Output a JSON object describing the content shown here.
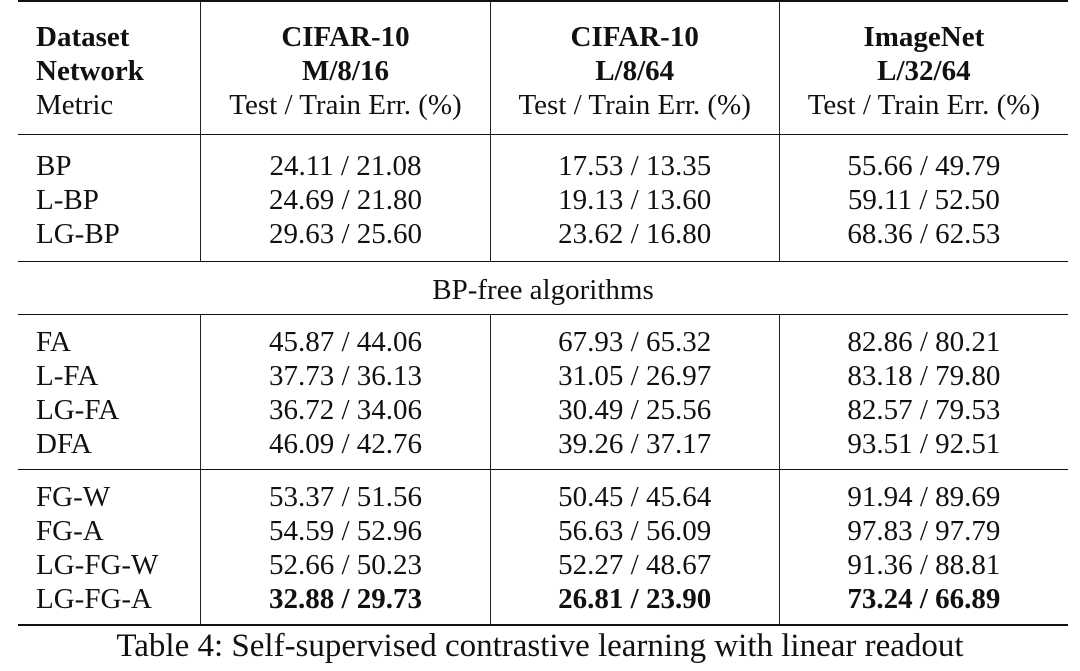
{
  "header": {
    "row1": [
      "Dataset",
      "CIFAR-10",
      "CIFAR-10",
      "ImageNet"
    ],
    "row2": [
      "Network",
      "M/8/16",
      "L/8/64",
      "L/32/64"
    ],
    "row3": [
      "Metric",
      "Test / Train Err. (%)",
      "Test / Train Err. (%)",
      "Test / Train Err. (%)"
    ]
  },
  "group_bp": [
    [
      "BP",
      "24.11 / 21.08",
      "17.53 / 13.35",
      "55.66 / 49.79"
    ],
    [
      "L-BP",
      "24.69 / 21.80",
      "19.13 / 13.60",
      "59.11 / 52.50"
    ],
    [
      "LG-BP",
      "29.63 / 25.60",
      "23.62 / 16.80",
      "68.36 / 62.53"
    ]
  ],
  "section_label": "BP-free algorithms",
  "group_fa": [
    [
      "FA",
      "45.87 / 44.06",
      "67.93 / 65.32",
      "82.86 / 80.21"
    ],
    [
      "L-FA",
      "37.73 / 36.13",
      "31.05 / 26.97",
      "83.18 / 79.80"
    ],
    [
      "LG-FA",
      "36.72 / 34.06",
      "30.49 / 25.56",
      "82.57 / 79.53"
    ],
    [
      "DFA",
      "46.09 / 42.76",
      "39.26 / 37.17",
      "93.51 / 92.51"
    ]
  ],
  "group_fg": [
    [
      "FG-W",
      "53.37 / 51.56",
      "50.45 / 45.64",
      "91.94 / 89.69"
    ],
    [
      "FG-A",
      "54.59 / 52.96",
      "56.63 / 56.09",
      "97.83 / 97.79"
    ],
    [
      "LG-FG-W",
      "52.66 / 50.23",
      "52.27 / 48.67",
      "91.36 / 88.81"
    ],
    [
      "LG-FG-A",
      "32.88 / 29.73",
      "26.81 / 23.90",
      "73.24 / 66.89"
    ]
  ],
  "caption": "Table 4: Self-supervised contrastive learning with linear readout"
}
